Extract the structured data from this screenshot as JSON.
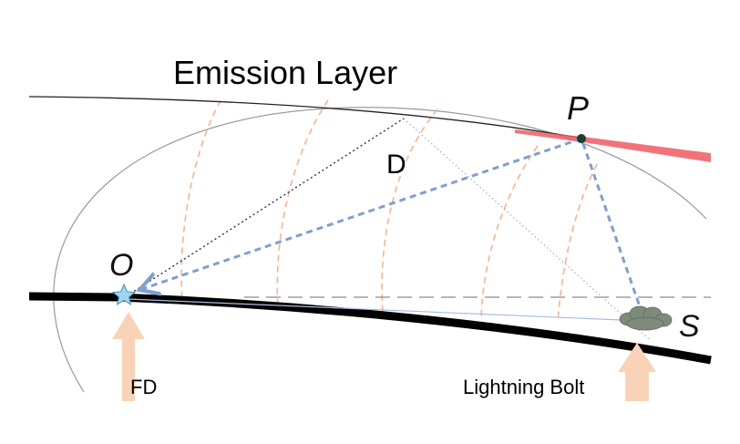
{
  "labels": {
    "emission_layer": "Emission Layer",
    "point_p": "P",
    "distance_d": "D",
    "observer_o": "O",
    "source_s": "S",
    "fd": "FD",
    "lightning_bolt": "Lightning Bolt"
  },
  "colors": {
    "ground": "#000000",
    "emission_layer": "#222222",
    "ellipse": "#9a9a9a",
    "wavefront": "#f2b48f",
    "ray": "#7f9fd0",
    "red_band": "#ef5b63",
    "arrow_fill": "#f9d3b8",
    "star": "#9fd4ee",
    "cloud": "#7f8a7a"
  }
}
